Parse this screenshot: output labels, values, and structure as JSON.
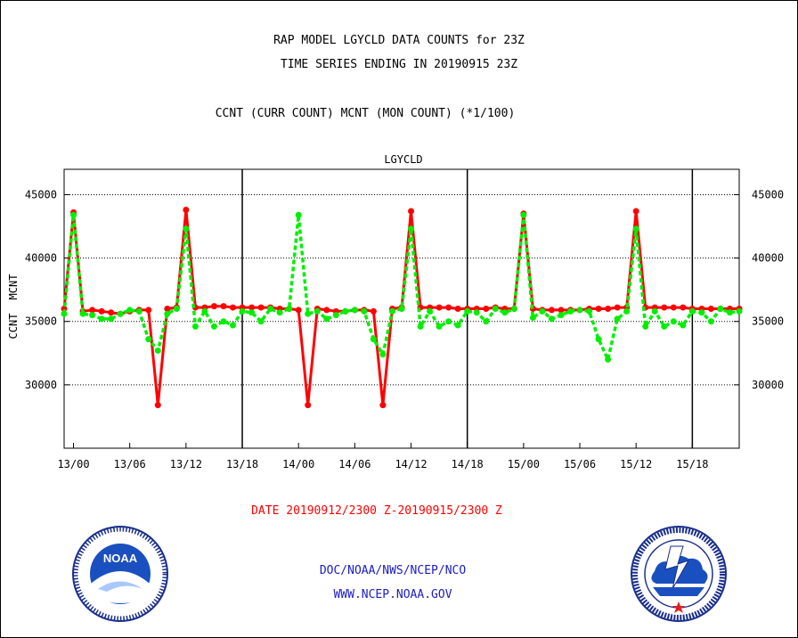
{
  "header": {
    "line1": "RAP MODEL LGYCLD DATA COUNTS for 23Z",
    "line2": "TIME SERIES ENDING IN 20190915 23Z",
    "line3": "CCNT (CURR COUNT) MCNT (MON COUNT) (*1/100)"
  },
  "footer": {
    "date_range": "DATE 20190912/2300 Z-20190915/2300 Z",
    "org": "DOC/NOAA/NWS/NCEP/NCO",
    "url": "WWW.NCEP.NOAA.GOV"
  },
  "logos": {
    "left": {
      "name": "noaa-logo",
      "text": "NOAA"
    },
    "right": {
      "name": "nws-logo"
    }
  },
  "colors": {
    "ccnt": "#ff0000",
    "mcnt": "#00ee00",
    "title": "#0000cc"
  },
  "chart_data": {
    "type": "line",
    "title": "LGYCLD",
    "ylabel_left": [
      "CCNT",
      "MCNT"
    ],
    "ylim": [
      25000,
      47000
    ],
    "y_ticks": [
      30000,
      35000,
      40000,
      45000
    ],
    "x_tick_labels": [
      "13/00",
      "13/06",
      "13/12",
      "13/18",
      "14/00",
      "14/06",
      "14/12",
      "14/18",
      "15/00",
      "15/06",
      "15/12",
      "15/18"
    ],
    "x_tick_hours": [
      1,
      7,
      13,
      19,
      25,
      31,
      37,
      43,
      49,
      55,
      61,
      67
    ],
    "xlim": [
      0,
      72
    ],
    "day_boundaries": [
      19,
      43,
      67
    ],
    "grid": "horizontal-dotted",
    "series": [
      {
        "name": "CCNT",
        "x": [
          0,
          1,
          2,
          3,
          4,
          5,
          6,
          7,
          8,
          9,
          10,
          11,
          12,
          13,
          14,
          15,
          16,
          17,
          18,
          19,
          20,
          21,
          22,
          23,
          24,
          25,
          26,
          27,
          28,
          29,
          30,
          31,
          32,
          33,
          34,
          35,
          36,
          37,
          38,
          39,
          40,
          41,
          42,
          43,
          44,
          45,
          46,
          47,
          48,
          49,
          50,
          51,
          52,
          53,
          54,
          55,
          56,
          57,
          58,
          59,
          60,
          61,
          62,
          63,
          64,
          65,
          66,
          67,
          68,
          69,
          70,
          71,
          72
        ],
        "values": [
          36000,
          43600,
          35800,
          35900,
          35800,
          35700,
          35600,
          35800,
          35900,
          35900,
          28400,
          36000,
          36100,
          43800,
          36100,
          36100,
          36200,
          36200,
          36100,
          36100,
          36100,
          36100,
          36100,
          36000,
          36000,
          35900,
          28400,
          36000,
          35900,
          35800,
          35800,
          35900,
          35900,
          35800,
          28400,
          36000,
          36100,
          43700,
          36100,
          36100,
          36100,
          36100,
          36000,
          36000,
          36000,
          36000,
          36100,
          36000,
          36000,
          43500,
          36000,
          35900,
          35900,
          35900,
          35900,
          35900,
          36000,
          36000,
          36000,
          36100,
          36100,
          43700,
          36100,
          36100,
          36100,
          36100,
          36100,
          36000,
          36000,
          36000,
          36000,
          36000,
          36000
        ]
      },
      {
        "name": "MCNT",
        "x": [
          0,
          1,
          2,
          3,
          4,
          5,
          6,
          7,
          8,
          9,
          10,
          11,
          12,
          13,
          14,
          15,
          16,
          17,
          18,
          19,
          20,
          21,
          22,
          23,
          24,
          25,
          26,
          27,
          28,
          29,
          30,
          31,
          32,
          33,
          34,
          35,
          36,
          37,
          38,
          39,
          40,
          41,
          42,
          43,
          44,
          45,
          46,
          47,
          48,
          49,
          50,
          51,
          52,
          53,
          54,
          55,
          56,
          57,
          58,
          59,
          60,
          61,
          62,
          63,
          64,
          65,
          66,
          67,
          68,
          69,
          70,
          71,
          72
        ],
        "values": [
          35600,
          43400,
          35600,
          35500,
          35200,
          35200,
          35600,
          35900,
          35800,
          33600,
          32700,
          35600,
          36000,
          42300,
          34600,
          35800,
          34600,
          35000,
          34700,
          35800,
          35700,
          35000,
          36000,
          35700,
          36000,
          43400,
          35600,
          35800,
          35200,
          35500,
          35800,
          35900,
          35800,
          33600,
          32400,
          35800,
          36000,
          42300,
          34600,
          35800,
          34600,
          35000,
          34700,
          35800,
          35700,
          35000,
          36000,
          35700,
          36000,
          43400,
          35300,
          35800,
          35200,
          35500,
          35800,
          35900,
          35800,
          33600,
          32000,
          35200,
          35800,
          42300,
          34600,
          35800,
          34600,
          35000,
          34700,
          35800,
          35700,
          35000,
          36000,
          35700,
          35800
        ]
      }
    ]
  }
}
